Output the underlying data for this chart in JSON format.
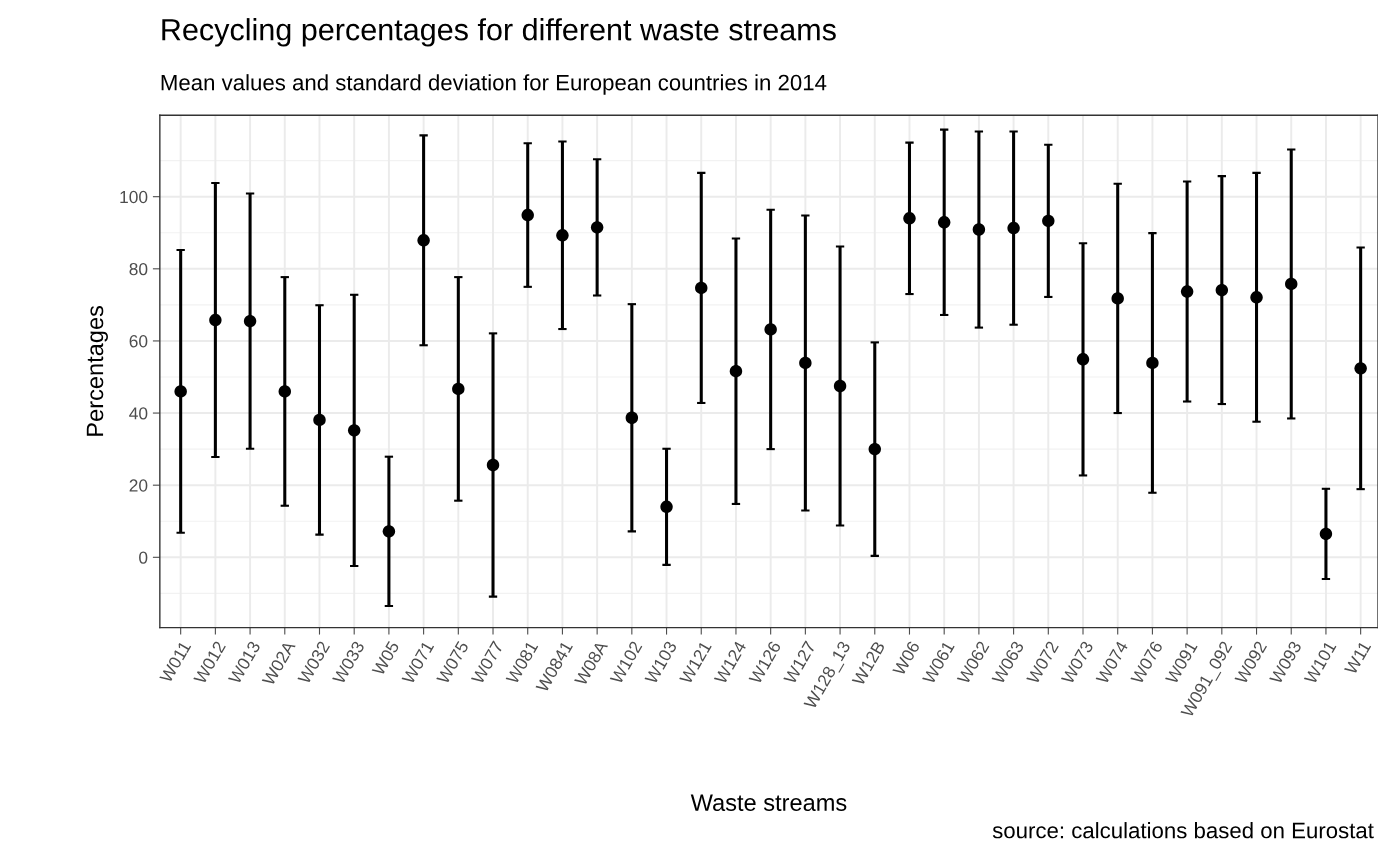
{
  "chart_data": {
    "type": "scatter",
    "title": "Recycling percentages for different waste streams",
    "subtitle": "Mean values and standard deviation for European countries in 2014",
    "xlabel": "Waste streams",
    "ylabel": "Percentages",
    "annotations": [
      "source: calculations based on Eurostat"
    ],
    "categories": [
      "W011",
      "W012",
      "W013",
      "W02A",
      "W032",
      "W033",
      "W05",
      "W071",
      "W075",
      "W077",
      "W081",
      "W0841",
      "W08A",
      "W102",
      "W103",
      "W121",
      "W124",
      "W126",
      "W127",
      "W128_13",
      "W12B",
      "W06",
      "W061",
      "W062",
      "W063",
      "W072",
      "W073",
      "W074",
      "W076",
      "W091",
      "W091_092",
      "W092",
      "W093",
      "W101",
      "W11"
    ],
    "values": [
      46.0,
      65.8,
      65.5,
      46.0,
      38.1,
      35.2,
      7.2,
      87.9,
      46.7,
      25.6,
      94.9,
      89.3,
      91.5,
      38.7,
      14.0,
      74.7,
      51.6,
      63.2,
      53.9,
      47.5,
      30.0,
      94.0,
      92.9,
      90.9,
      91.3,
      93.3,
      54.9,
      71.8,
      53.9,
      73.7,
      74.1,
      72.1,
      75.8,
      6.5,
      52.4
    ],
    "errors": [
      39.2,
      38.0,
      35.4,
      31.7,
      31.8,
      37.6,
      20.7,
      29.1,
      31.0,
      36.5,
      19.9,
      26.0,
      18.9,
      31.5,
      16.1,
      31.9,
      36.8,
      33.2,
      40.9,
      38.7,
      29.6,
      21.0,
      25.7,
      27.2,
      26.8,
      21.1,
      32.2,
      31.8,
      36.0,
      30.5,
      31.6,
      34.5,
      37.3,
      12.5,
      33.5
    ],
    "color": "#000000",
    "marker": "circle",
    "ylim": [
      -19.5,
      122.6
    ],
    "yticks": [
      0,
      20,
      40,
      60,
      80,
      100
    ],
    "grid": true,
    "legend": false
  }
}
